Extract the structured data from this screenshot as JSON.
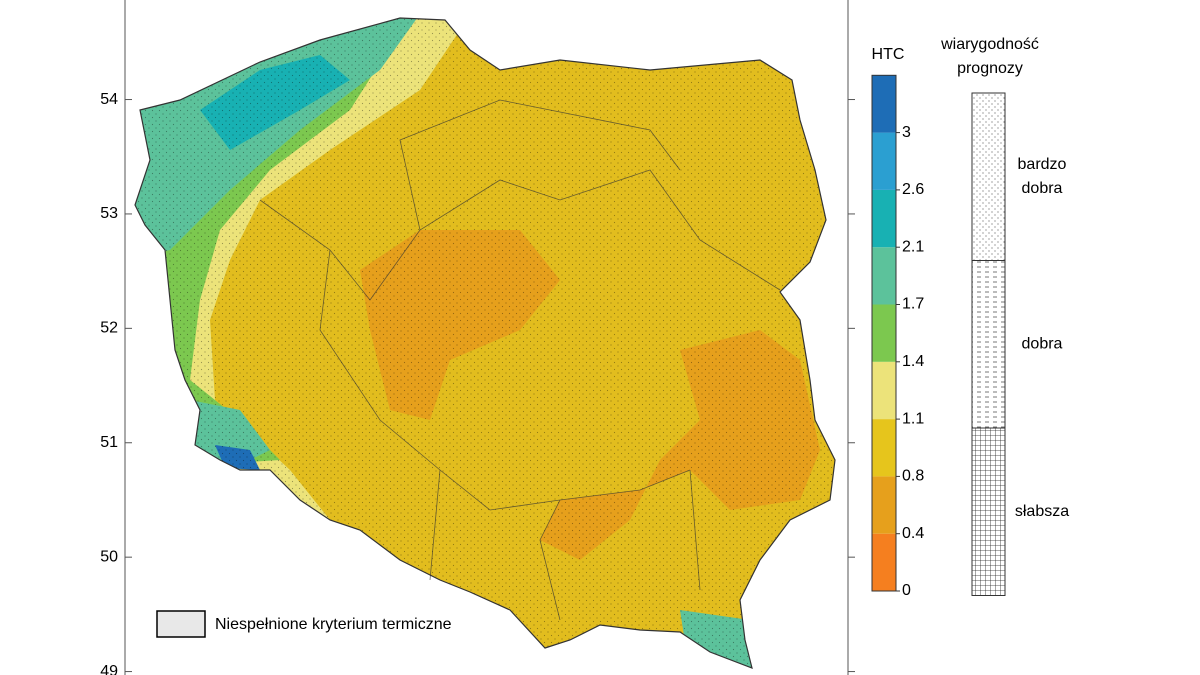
{
  "map": {
    "lat_axis": {
      "ylim": [
        48.97,
        54.87
      ],
      "ticks": [
        54,
        53,
        52,
        51,
        50,
        49
      ]
    },
    "colorbar": {
      "title": "HTC",
      "ticks": [
        0,
        0.4,
        0.8,
        1.1,
        1.4,
        1.7,
        2.1,
        2.6,
        3
      ],
      "colors": [
        "#f57f1f",
        "#e6a01c",
        "#e6c51c",
        "#ece37a",
        "#7cc84f",
        "#5cc29b",
        "#18b1b3",
        "#2b9fd1",
        "#1e6db6"
      ]
    },
    "reliability": {
      "title": [
        "wiarygodność",
        "prognozy"
      ],
      "levels": [
        {
          "label": [
            "bardzo",
            "dobra"
          ],
          "pattern": "dots"
        },
        {
          "label": [
            "dobra"
          ],
          "pattern": "dashes"
        },
        {
          "label": [
            "słabsza"
          ],
          "pattern": "grid"
        }
      ]
    },
    "legend": {
      "label": "Niespełnione kryterium termiczne"
    }
  }
}
